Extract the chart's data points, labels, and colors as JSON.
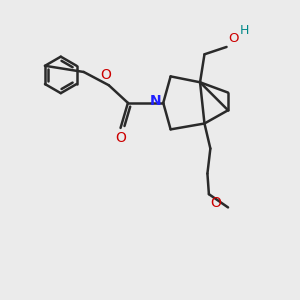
{
  "bg_color": "#ebebeb",
  "bond_color": "#2a2a2a",
  "N_color": "#2020ff",
  "O_color": "#cc0000",
  "OH_color": "#008888",
  "bond_width": 1.8,
  "fig_width": 3.0,
  "fig_height": 3.0,
  "dpi": 100,
  "xlim": [
    0,
    10
  ],
  "ylim": [
    0,
    10
  ]
}
